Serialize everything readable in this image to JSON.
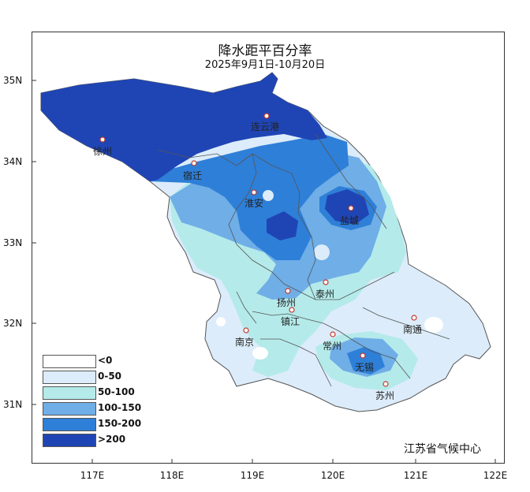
{
  "title": "降水距平百分率",
  "subtitle": "2025年9月1日-10月20日",
  "y_ticks": [
    "35N",
    "34N",
    "33N",
    "32N",
    "31N"
  ],
  "x_ticks": [
    "117E",
    "118E",
    "119E",
    "120E",
    "121E",
    "122E"
  ],
  "cities": [
    "徐州",
    "连云港",
    "宿迁",
    "淮安",
    "盐城",
    "扬州",
    "泰州",
    "镇江",
    "南京",
    "常州",
    "无锡",
    "南通",
    "苏州"
  ],
  "legend": [
    {
      "label": "<0",
      "color": "#ffffff"
    },
    {
      "label": "0-50",
      "color": "#dcecfa"
    },
    {
      "label": "50-100",
      "color": "#b4eaea"
    },
    {
      "label": "100-150",
      "color": "#6faee6"
    },
    {
      "label": "150-200",
      "color": "#2e7fd8"
    },
    {
      "label": ">200",
      "color": "#1f45b5"
    }
  ],
  "credit": "江苏省气候中心"
}
